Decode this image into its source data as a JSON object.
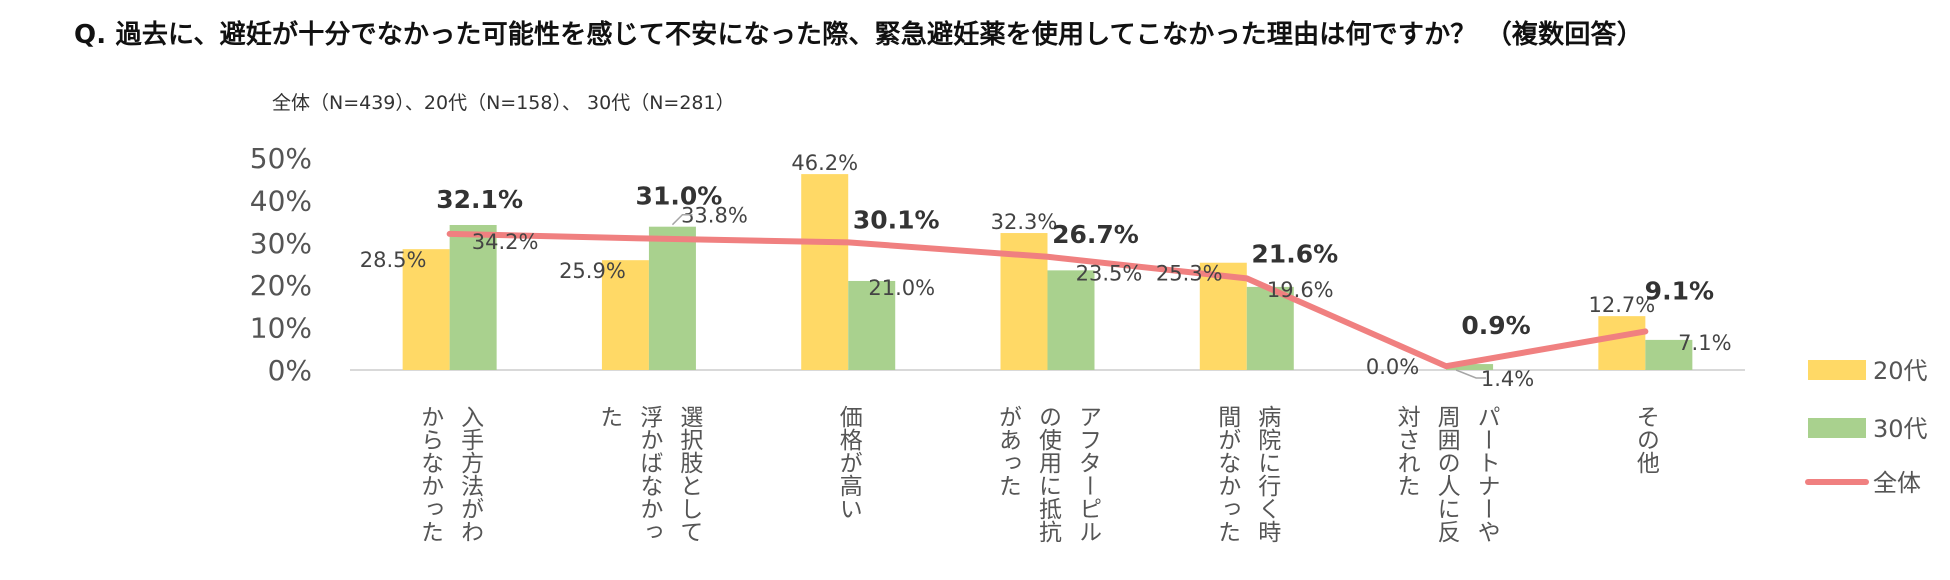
{
  "header": {
    "title": "Q. 過去に、避妊が十分でなかった可能性を感じて不安になった際、緊急避妊薬を使用してこなかった理由は何ですか？ （複数回答）",
    "subtitle": "全体（N=439）、20代（N=158）、 30代（N=281）"
  },
  "chart_data": {
    "type": "bar",
    "title": "Q. 過去に、避妊が十分でなかった可能性を感じて不安になった際、緊急避妊薬を使用してこなかった理由は何ですか？ （複数回答）",
    "subtitle": "全体（N=439）、20代（N=158）、 30代（N=281）",
    "ylim": [
      0,
      50
    ],
    "yticks": [
      0,
      10,
      20,
      30,
      40,
      50
    ],
    "ytick_labels": [
      "0%",
      "10%",
      "20%",
      "30%",
      "40%",
      "50%"
    ],
    "grid": false,
    "legend_position": "right",
    "categories": [
      [
        "入手方法がわ",
        "からなかった"
      ],
      [
        "選択肢として",
        "浮かばなかっ",
        "た"
      ],
      [
        "価格が高い"
      ],
      [
        "アフターピル",
        "の使用に抵抗",
        "があった"
      ],
      [
        "病院に行く時",
        "間がなかった"
      ],
      [
        "パートナーや",
        "周囲の人に反",
        "対された"
      ],
      [
        "その他"
      ]
    ],
    "series": [
      {
        "name": "20代",
        "type": "bar",
        "color": "#FFD966",
        "values": [
          28.5,
          25.9,
          46.2,
          32.3,
          25.3,
          0.0,
          12.7
        ],
        "labels": [
          "28.5%",
          "25.9%",
          "46.2%",
          "32.3%",
          "25.3%",
          "0.0%",
          "12.7%"
        ]
      },
      {
        "name": "30代",
        "type": "bar",
        "color": "#A9D18E",
        "values": [
          34.2,
          33.8,
          21.0,
          23.5,
          19.6,
          1.4,
          7.1
        ],
        "labels": [
          "34.2%",
          "33.8%",
          "21.0%",
          "23.5%",
          "19.6%",
          "1.4%",
          "7.1%"
        ]
      },
      {
        "name": "全体",
        "type": "line",
        "color": "#F08080",
        "values": [
          32.1,
          31.0,
          30.1,
          26.7,
          21.6,
          0.9,
          9.1
        ],
        "labels": [
          "32.1%",
          "31.0%",
          "30.1%",
          "26.7%",
          "21.6%",
          "0.9%",
          "9.1%"
        ]
      }
    ]
  }
}
